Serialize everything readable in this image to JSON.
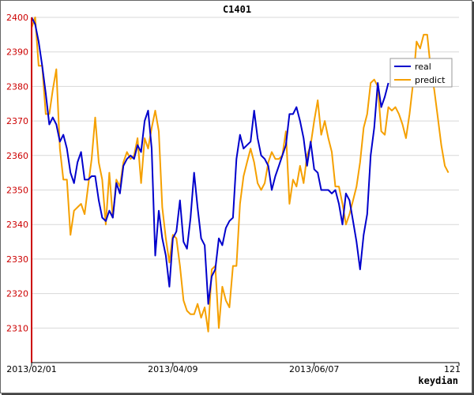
{
  "chart_data": {
    "type": "line",
    "title": "C1401",
    "xlabel": "keydian",
    "ylabel": "",
    "x_ticks": [
      "2013/02/01",
      "2013/04/09",
      "2013/06/07",
      "121"
    ],
    "x_tick_index": [
      0,
      40,
      80,
      121
    ],
    "y_ticks": [
      "2310",
      "2320",
      "2330",
      "2340",
      "2350",
      "2360",
      "2370",
      "2380",
      "2390",
      "2400"
    ],
    "ylim": [
      2300,
      2400
    ],
    "xlim": [
      0,
      121
    ],
    "grid": "horizontal",
    "legend_position": "top-right",
    "colors": {
      "real": "#0000cc",
      "predict": "#f5a000",
      "ytick": "#cc0000",
      "axis": "#cc0000"
    },
    "series": [
      {
        "name": "real",
        "values": [
          2400,
          2398,
          2393,
          2386,
          2378,
          2369,
          2371,
          2369,
          2364,
          2366,
          2362,
          2355,
          2352,
          2358,
          2361,
          2353,
          2353,
          2354,
          2354,
          2347,
          2342,
          2341,
          2344,
          2342,
          2352,
          2349,
          2357,
          2359,
          2360,
          2359,
          2363,
          2361,
          2370,
          2373,
          2362,
          2331,
          2344,
          2336,
          2331,
          2322,
          2336,
          2338,
          2347,
          2335,
          2333,
          2342,
          2355,
          2345,
          2336,
          2334,
          2317,
          2325,
          2327,
          2336,
          2334,
          2339,
          2341,
          2342,
          2359,
          2366,
          2362,
          2363,
          2364,
          2373,
          2365,
          2360,
          2359,
          2357,
          2350,
          2354,
          2357,
          2360,
          2363,
          2372,
          2372,
          2374,
          2370,
          2365,
          2357,
          2364,
          2356,
          2355,
          2350,
          2350,
          2350,
          2349,
          2350,
          2346,
          2340,
          2349,
          2347,
          2341,
          2335,
          2327,
          2337,
          2343,
          2360,
          2368,
          2381,
          2374,
          2377,
          2381
        ]
      },
      {
        "name": "predict",
        "values": [
          2397,
          2400,
          2386,
          2386,
          2372,
          2372,
          2379,
          2385,
          2362,
          2353,
          2353,
          2337,
          2344,
          2345,
          2346,
          2343,
          2351,
          2359,
          2371,
          2358,
          2353,
          2340,
          2355,
          2342,
          2353,
          2351,
          2358,
          2361,
          2359,
          2360,
          2365,
          2352,
          2365,
          2362,
          2368,
          2373,
          2367,
          2345,
          2336,
          2329,
          2337,
          2336,
          2328,
          2318,
          2315,
          2314,
          2314,
          2317,
          2313,
          2316,
          2309,
          2327,
          2328,
          2310,
          2322,
          2318,
          2316,
          2328,
          2328,
          2346,
          2354,
          2358,
          2362,
          2358,
          2352,
          2350,
          2352,
          2358,
          2361,
          2359,
          2359,
          2360,
          2367,
          2346,
          2353,
          2351,
          2357,
          2352,
          2360,
          2363,
          2370,
          2376,
          2366,
          2370,
          2365,
          2361,
          2351,
          2351,
          2346,
          2340,
          2343,
          2347,
          2351,
          2358,
          2368,
          2372,
          2381,
          2382,
          2380,
          2367,
          2366,
          2374,
          2373,
          2374,
          2372,
          2369,
          2365,
          2372,
          2381,
          2393,
          2391,
          2395,
          2395,
          2385,
          2379,
          2371,
          2363,
          2357,
          2355
        ]
      }
    ]
  }
}
